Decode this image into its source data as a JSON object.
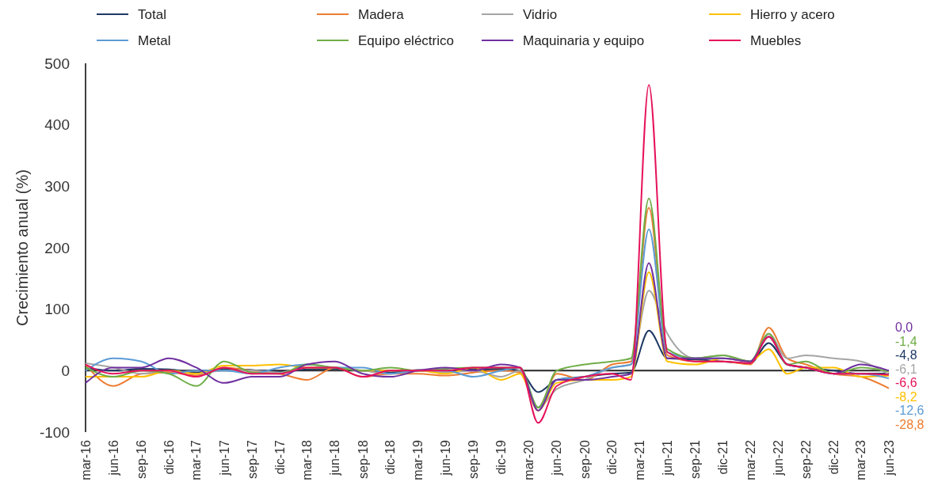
{
  "chart_data": {
    "type": "line",
    "ylabel": "Crecimiento anual (%)",
    "legend": "top",
    "grid": false,
    "line_style": "solid",
    "marker": "none",
    "x": [
      "2016-03",
      "2016-06",
      "2016-09",
      "2016-12",
      "2017-03",
      "2017-06",
      "2017-09",
      "2017-12",
      "2018-03",
      "2018-06",
      "2018-09",
      "2018-12",
      "2019-03",
      "2019-06",
      "2019-09",
      "2019-12",
      "2020-02",
      "2020-04",
      "2020-06",
      "2020-09",
      "2020-12",
      "2021-02",
      "2021-04",
      "2021-06",
      "2021-09",
      "2021-12",
      "2022-03",
      "2022-05",
      "2022-07",
      "2022-09",
      "2022-12",
      "2023-03",
      "2023-06"
    ],
    "xlim": [
      "2016-03",
      "2023-06"
    ],
    "xticks": [
      {
        "value": "2016-03",
        "label": "mar-16"
      },
      {
        "value": "2016-06",
        "label": "jun-16"
      },
      {
        "value": "2016-09",
        "label": "sep-16"
      },
      {
        "value": "2016-12",
        "label": "dic-16"
      },
      {
        "value": "2017-03",
        "label": "mar-17"
      },
      {
        "value": "2017-06",
        "label": "jun-17"
      },
      {
        "value": "2017-09",
        "label": "sep-17"
      },
      {
        "value": "2017-12",
        "label": "dic-17"
      },
      {
        "value": "2018-03",
        "label": "mar-18"
      },
      {
        "value": "2018-06",
        "label": "jun-18"
      },
      {
        "value": "2018-09",
        "label": "sep-18"
      },
      {
        "value": "2018-12",
        "label": "dic-18"
      },
      {
        "value": "2019-03",
        "label": "mar-19"
      },
      {
        "value": "2019-06",
        "label": "jun-19"
      },
      {
        "value": "2019-09",
        "label": "sep-19"
      },
      {
        "value": "2019-12",
        "label": "dic-19"
      },
      {
        "value": "2020-03",
        "label": "mar-20"
      },
      {
        "value": "2020-06",
        "label": "jun-20"
      },
      {
        "value": "2020-09",
        "label": "sep-20"
      },
      {
        "value": "2020-12",
        "label": "dic-20"
      },
      {
        "value": "2021-03",
        "label": "mar-21"
      },
      {
        "value": "2021-06",
        "label": "jun-21"
      },
      {
        "value": "2021-09",
        "label": "sep-21"
      },
      {
        "value": "2021-12",
        "label": "dic-21"
      },
      {
        "value": "2022-03",
        "label": "mar-22"
      },
      {
        "value": "2022-06",
        "label": "jun-22"
      },
      {
        "value": "2022-09",
        "label": "sep-22"
      },
      {
        "value": "2022-12",
        "label": "dic-22"
      },
      {
        "value": "2023-03",
        "label": "mar-23"
      },
      {
        "value": "2023-06",
        "label": "jun-23"
      }
    ],
    "ylim": [
      -100,
      500
    ],
    "yticks": [
      -100,
      0,
      100,
      200,
      300,
      400,
      500
    ],
    "ref_lines": [
      {
        "axis": "y",
        "value": 0,
        "color": "#262626"
      }
    ],
    "series": [
      {
        "name": "Total",
        "color": "#1f3864",
        "values": [
          5,
          0,
          3,
          2,
          -3,
          3,
          1,
          -2,
          2,
          3,
          0,
          -3,
          1,
          0,
          2,
          3,
          0,
          -35,
          -15,
          -10,
          -5,
          -3,
          65,
          20,
          18,
          15,
          12,
          45,
          10,
          5,
          0,
          -5,
          -4.8
        ],
        "value_labels": [
          null,
          null,
          null,
          null,
          null,
          null,
          null,
          null,
          null,
          null,
          null,
          null,
          null,
          null,
          null,
          null,
          null,
          null,
          null,
          null,
          null,
          null,
          null,
          null,
          null,
          null,
          null,
          null,
          null,
          null,
          null,
          null,
          "-4,8"
        ]
      },
      {
        "name": "Madera",
        "color": "#ed7d31",
        "values": [
          10,
          -25,
          -5,
          -3,
          -8,
          5,
          0,
          -5,
          -15,
          5,
          -10,
          -5,
          -5,
          -8,
          -3,
          0,
          -3,
          -60,
          -5,
          -15,
          10,
          15,
          265,
          25,
          15,
          15,
          10,
          70,
          20,
          10,
          -5,
          -10,
          -28.8
        ],
        "value_labels": [
          null,
          null,
          null,
          null,
          null,
          null,
          null,
          null,
          null,
          null,
          null,
          null,
          null,
          null,
          null,
          null,
          null,
          null,
          null,
          null,
          null,
          null,
          null,
          null,
          null,
          null,
          null,
          null,
          null,
          null,
          null,
          null,
          "-28,8"
        ]
      },
      {
        "name": "Vidrio",
        "color": "#a5a5a5",
        "values": [
          12,
          5,
          -5,
          0,
          -5,
          0,
          0,
          -3,
          5,
          5,
          0,
          -5,
          0,
          -3,
          0,
          -10,
          0,
          -60,
          -30,
          -15,
          5,
          10,
          130,
          60,
          20,
          25,
          15,
          60,
          20,
          25,
          20,
          15,
          -6.1
        ],
        "value_labels": [
          null,
          null,
          null,
          null,
          null,
          null,
          null,
          null,
          null,
          null,
          null,
          null,
          null,
          null,
          null,
          null,
          null,
          null,
          null,
          null,
          null,
          null,
          null,
          null,
          null,
          null,
          null,
          null,
          null,
          null,
          null,
          null,
          "-6,1"
        ]
      },
      {
        "name": "Hierro y acero",
        "color": "#ffc000",
        "values": [
          -10,
          -10,
          -10,
          0,
          -5,
          8,
          8,
          10,
          5,
          5,
          0,
          0,
          0,
          -5,
          5,
          -15,
          -5,
          -65,
          -20,
          -15,
          -15,
          -10,
          160,
          15,
          10,
          20,
          15,
          35,
          -5,
          5,
          5,
          -10,
          -8.2
        ],
        "value_labels": [
          null,
          null,
          null,
          null,
          null,
          null,
          null,
          null,
          null,
          null,
          null,
          null,
          null,
          null,
          null,
          null,
          null,
          null,
          null,
          null,
          null,
          null,
          null,
          null,
          null,
          null,
          null,
          null,
          null,
          null,
          null,
          null,
          "-8,2"
        ]
      },
      {
        "name": "Metal",
        "color": "#5b9bd5",
        "values": [
          0,
          20,
          15,
          -5,
          0,
          0,
          -5,
          5,
          10,
          5,
          5,
          -5,
          0,
          0,
          -10,
          0,
          5,
          -60,
          -15,
          -10,
          5,
          10,
          230,
          30,
          20,
          20,
          15,
          55,
          10,
          5,
          -5,
          -5,
          -12.6
        ],
        "value_labels": [
          null,
          null,
          null,
          null,
          null,
          null,
          null,
          null,
          null,
          null,
          null,
          null,
          null,
          null,
          null,
          null,
          null,
          null,
          null,
          null,
          null,
          null,
          null,
          null,
          null,
          null,
          null,
          null,
          null,
          null,
          null,
          null,
          "-12,6"
        ]
      },
      {
        "name": "Equipo eléctrico",
        "color": "#70ad47",
        "values": [
          5,
          -10,
          0,
          -5,
          -25,
          15,
          -3,
          -5,
          10,
          5,
          0,
          5,
          0,
          3,
          5,
          5,
          5,
          -60,
          0,
          10,
          15,
          20,
          280,
          35,
          20,
          25,
          15,
          60,
          10,
          15,
          -5,
          5,
          -1.4
        ],
        "value_labels": [
          null,
          null,
          null,
          null,
          null,
          null,
          null,
          null,
          null,
          null,
          null,
          null,
          null,
          null,
          null,
          null,
          null,
          null,
          null,
          null,
          null,
          null,
          null,
          null,
          null,
          null,
          null,
          null,
          null,
          null,
          null,
          null,
          "-1,4"
        ]
      },
      {
        "name": "Maquinaria y equipo",
        "color": "#7030a0",
        "values": [
          -20,
          5,
          5,
          20,
          5,
          -20,
          -10,
          -10,
          10,
          15,
          -5,
          -10,
          0,
          5,
          0,
          10,
          5,
          -65,
          -15,
          -15,
          -10,
          -5,
          175,
          20,
          20,
          20,
          15,
          55,
          10,
          5,
          -5,
          10,
          0.0
        ],
        "value_labels": [
          null,
          null,
          null,
          null,
          null,
          null,
          null,
          null,
          null,
          null,
          null,
          null,
          null,
          null,
          null,
          null,
          null,
          null,
          null,
          null,
          null,
          null,
          null,
          null,
          null,
          null,
          null,
          null,
          null,
          null,
          null,
          null,
          "0,0"
        ]
      },
      {
        "name": "Muebles",
        "color": "#e6125c",
        "values": [
          10,
          -5,
          0,
          0,
          -10,
          5,
          -5,
          -5,
          5,
          5,
          -10,
          0,
          0,
          0,
          5,
          5,
          5,
          -85,
          -25,
          -10,
          -5,
          -15,
          465,
          30,
          15,
          15,
          12,
          55,
          10,
          5,
          -5,
          -5,
          -6.6
        ],
        "value_labels": [
          null,
          null,
          null,
          null,
          null,
          null,
          null,
          null,
          null,
          null,
          null,
          null,
          null,
          null,
          null,
          null,
          null,
          null,
          null,
          null,
          null,
          null,
          null,
          null,
          null,
          null,
          null,
          null,
          null,
          null,
          null,
          null,
          "-6,6"
        ]
      }
    ]
  }
}
